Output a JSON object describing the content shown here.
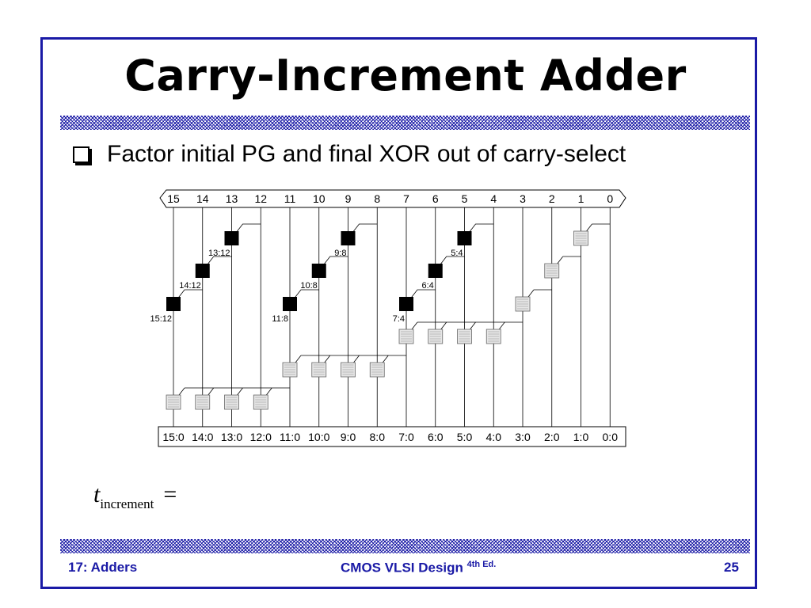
{
  "slide": {
    "title": "Carry-Increment Adder",
    "bullet": "Factor initial PG and final XOR out of carry-select",
    "formula_var": "t",
    "formula_sub": "increment",
    "formula_eq": "="
  },
  "diagram": {
    "top_bits": [
      "15",
      "14",
      "13",
      "12",
      "11",
      "10",
      "9",
      "8",
      "7",
      "6",
      "5",
      "4",
      "3",
      "2",
      "1",
      "0"
    ],
    "bottom_bits": [
      "15:0",
      "14:0",
      "13:0",
      "12:0",
      "11:0",
      "10:0",
      "9:0",
      "8:0",
      "7:0",
      "6:0",
      "5:0",
      "4:0",
      "3:0",
      "2:0",
      "1:0",
      "0:0"
    ],
    "black_cells": [
      {
        "col": 13,
        "row": 0,
        "label": "13:12"
      },
      {
        "col": 14,
        "row": 1,
        "label": "14:12"
      },
      {
        "col": 15,
        "row": 2,
        "label": "15:12"
      },
      {
        "col": 9,
        "row": 0,
        "label": "9:8"
      },
      {
        "col": 10,
        "row": 1,
        "label": "10:8"
      },
      {
        "col": 11,
        "row": 2,
        "label": "11:8"
      },
      {
        "col": 5,
        "row": 0,
        "label": "5:4"
      },
      {
        "col": 6,
        "row": 1,
        "label": "6:4"
      },
      {
        "col": 7,
        "row": 2,
        "label": "7:4"
      }
    ],
    "gray_cells": [
      {
        "col": 1,
        "row": 0
      },
      {
        "col": 2,
        "row": 1
      },
      {
        "col": 3,
        "row": 2
      },
      {
        "col": 7,
        "row": 3
      },
      {
        "col": 6,
        "row": 3
      },
      {
        "col": 5,
        "row": 3
      },
      {
        "col": 4,
        "row": 3
      },
      {
        "col": 11,
        "row": 4
      },
      {
        "col": 10,
        "row": 4
      },
      {
        "col": 9,
        "row": 4
      },
      {
        "col": 8,
        "row": 4
      },
      {
        "col": 15,
        "row": 5
      },
      {
        "col": 14,
        "row": 5
      },
      {
        "col": 13,
        "row": 5
      },
      {
        "col": 12,
        "row": 5
      }
    ],
    "colors": {
      "black_cell": "#000000",
      "gray_cell": "#e6e6e6",
      "wire": "#000000"
    }
  },
  "footer": {
    "left": "17: Adders",
    "center": "CMOS VLSI Design",
    "center_sup": "4th Ed.",
    "right": "25"
  },
  "colors": {
    "frame": "#1a1aa6",
    "footer_text": "#1a1aa6"
  }
}
